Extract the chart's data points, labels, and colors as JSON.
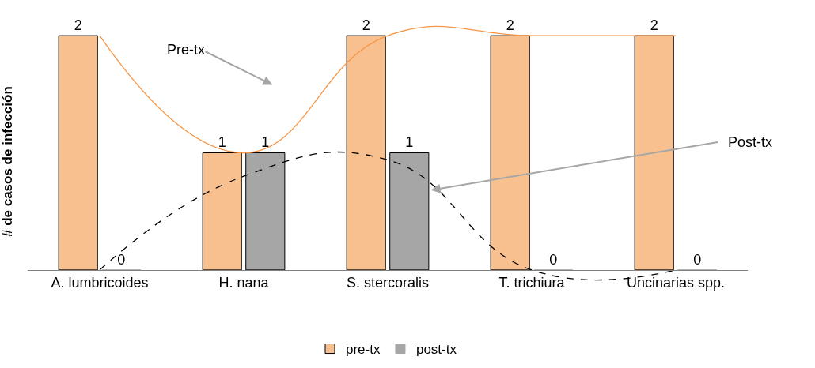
{
  "chart_data": {
    "type": "bar",
    "ylabel": "# de casos de infección",
    "categories": [
      "A. lumbricoides",
      "H. nana",
      "S. stercoralis",
      "T. trichiura",
      "Uncinarias spp."
    ],
    "series": [
      {
        "name": "pre-tx",
        "color": "#f9c08f",
        "values": [
          2,
          1,
          2,
          2,
          2
        ],
        "value_labels": [
          "2",
          "1",
          "2",
          "2",
          "2"
        ]
      },
      {
        "name": "post-tx",
        "color": "#a6a6a6",
        "values": [
          0,
          1,
          1,
          0,
          0
        ],
        "value_labels": [
          "0",
          "1",
          "1",
          "0",
          "0"
        ]
      },
      {
        "type": "line",
        "color": "#f79646",
        "line_style": "solid",
        "values": [
          2,
          1,
          2,
          2,
          2
        ]
      },
      {
        "type": "line",
        "color": "#000000",
        "line_style": "dashed",
        "values": [
          0,
          0.8,
          0.94,
          0,
          0
        ]
      }
    ],
    "legend": "bottom",
    "marker": "none",
    "annotations": [
      "Pre-tx",
      "Post-tx"
    ]
  }
}
